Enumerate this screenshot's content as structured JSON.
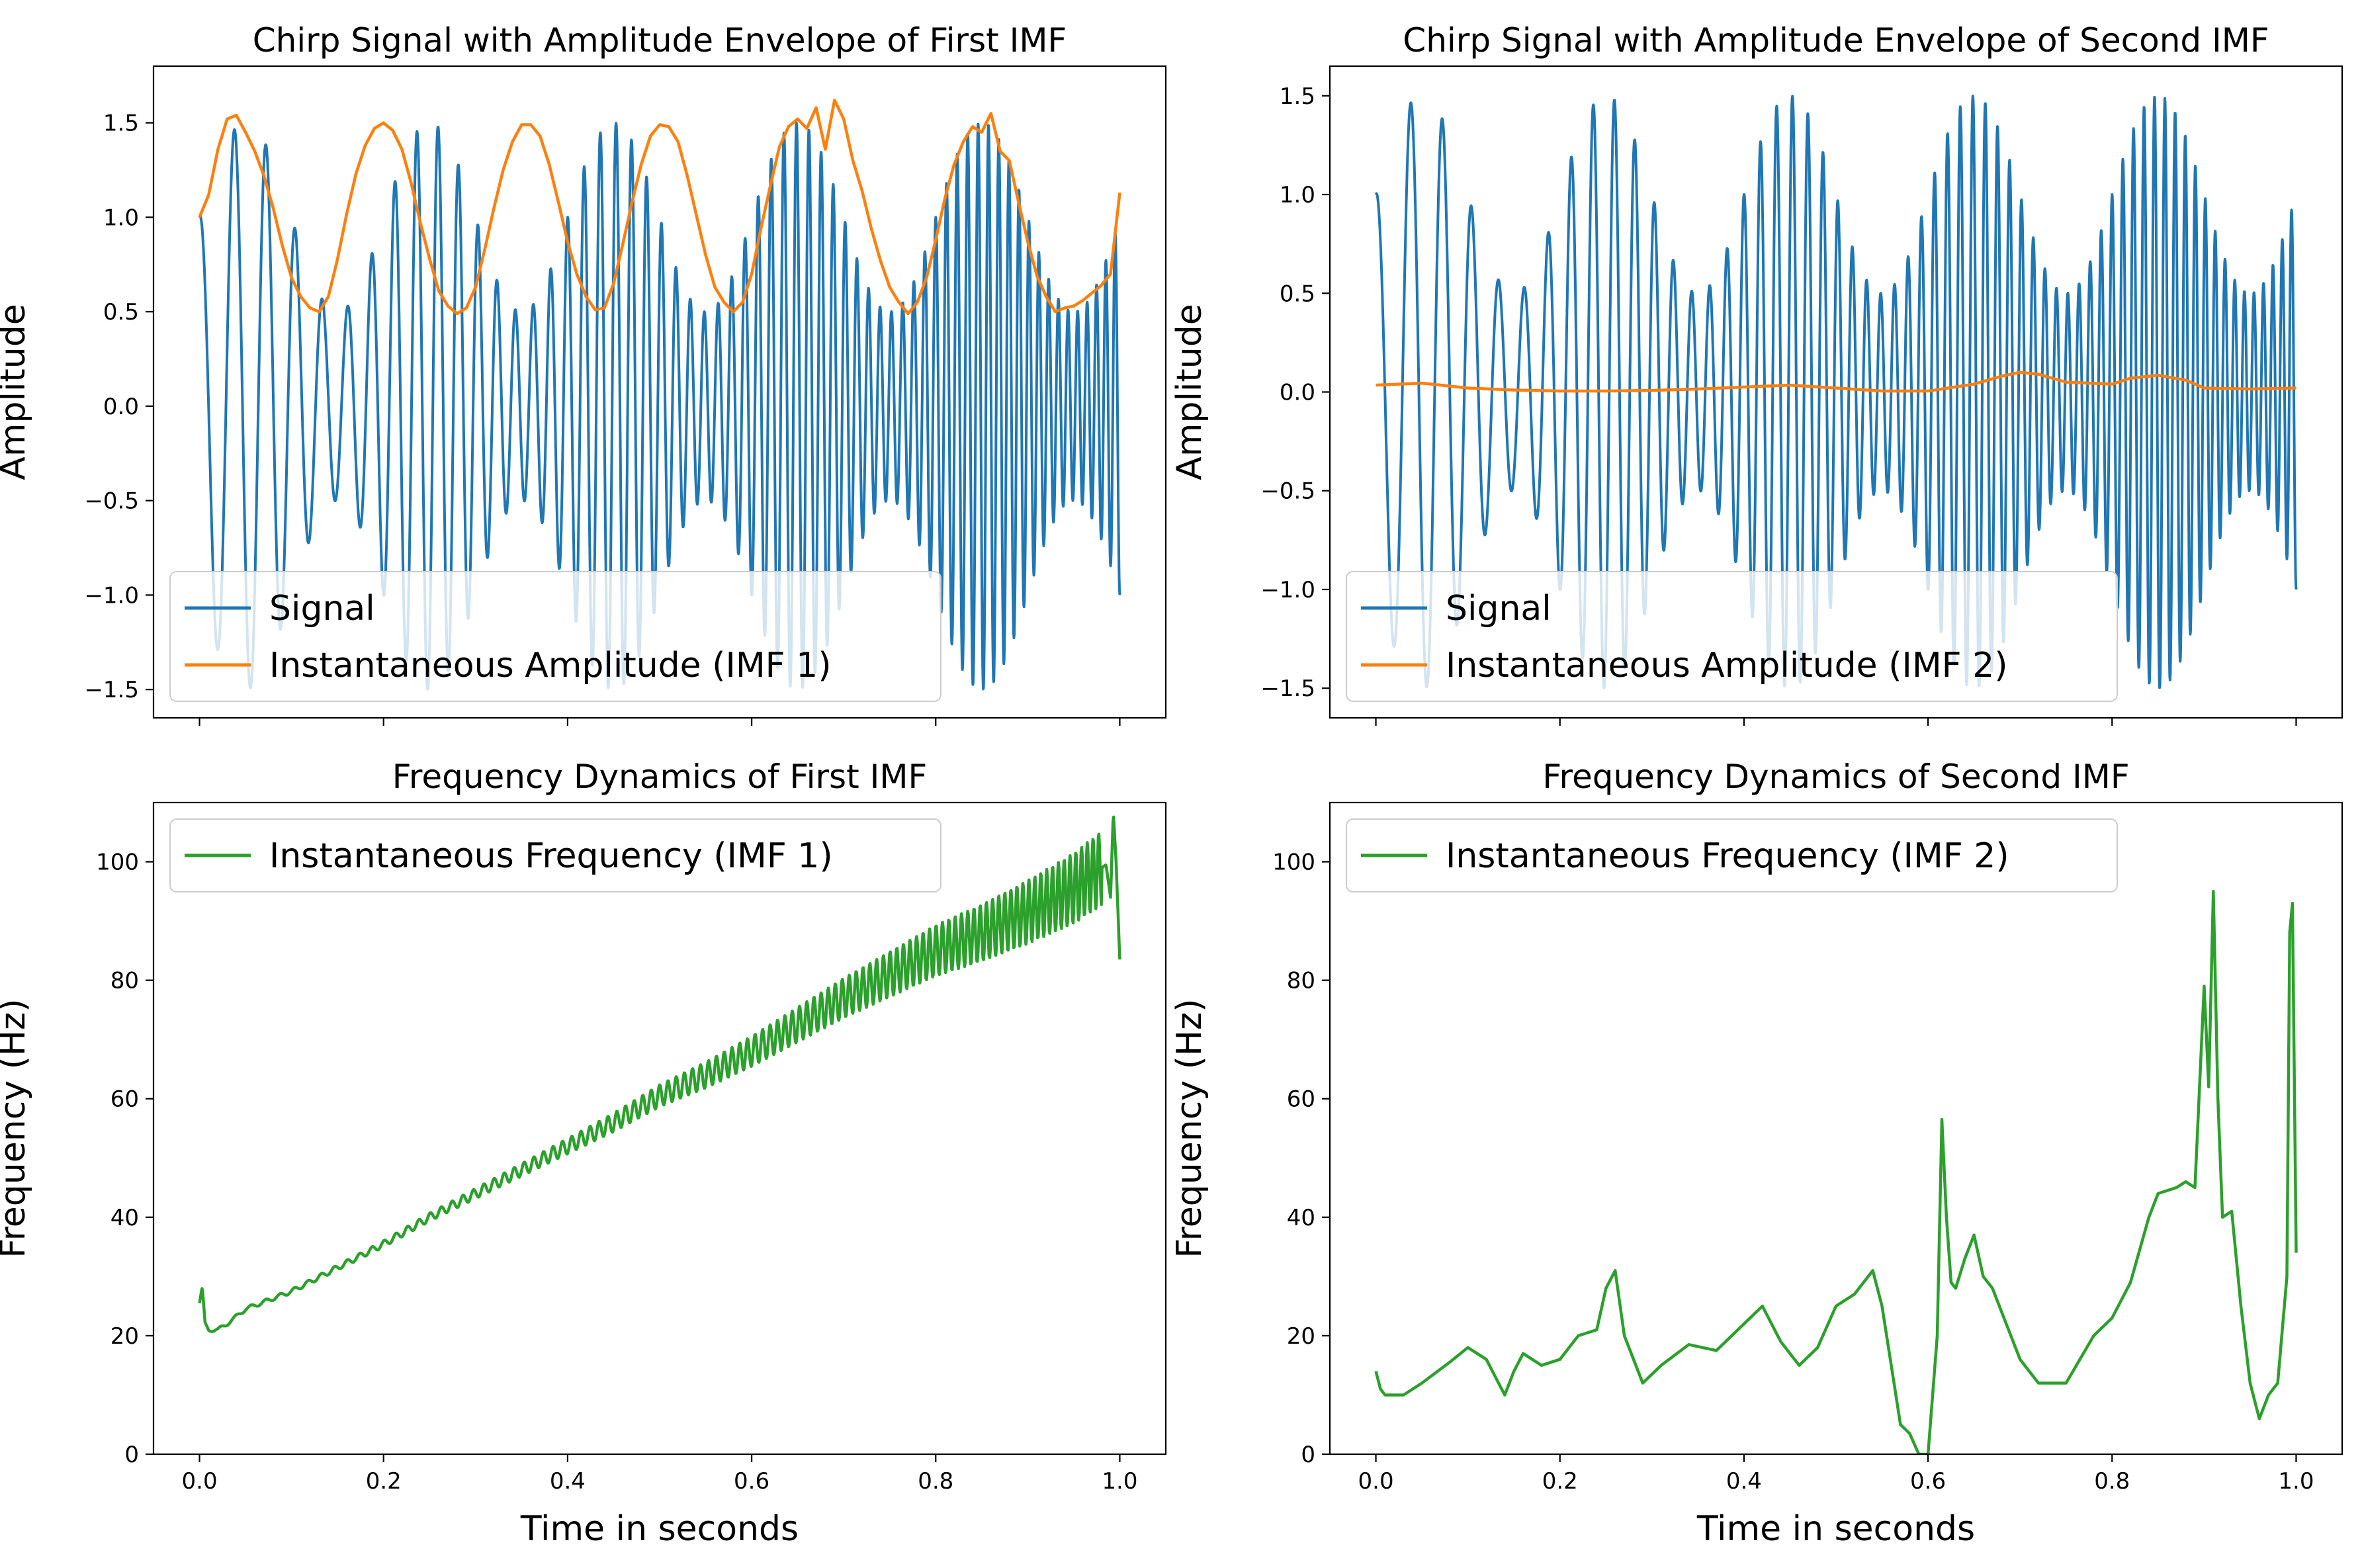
{
  "chart_data": [
    {
      "type": "line",
      "title": "Chirp Signal with Amplitude Envelope of First IMF",
      "xlabel": "",
      "ylabel": "Amplitude",
      "xlim": [
        -0.05,
        1.05
      ],
      "ylim": [
        -1.65,
        1.8
      ],
      "xticks": [
        0.0,
        0.2,
        0.4,
        0.6,
        0.8,
        1.0
      ],
      "xtick_labels_visible": false,
      "yticks": [
        -1.5,
        -1.0,
        -0.5,
        0.0,
        0.5,
        1.0,
        1.5
      ],
      "ytick_labels": [
        "−1.5",
        "−1.0",
        "−0.5",
        "0.0",
        "0.5",
        "1.0",
        "1.5"
      ],
      "legend_position": "lower-left",
      "grid": false,
      "signal": {
        "f0": 25,
        "k": 37.5,
        "mod_freq": 5,
        "mod_depth": 0.5,
        "t_range": [
          0,
          1
        ]
      },
      "series": [
        {
          "name": "Signal",
          "color": "#1f77b4",
          "kind": "signal"
        },
        {
          "name": "Instantaneous Amplitude (IMF 1)",
          "color": "#ff7f0e",
          "kind": "envelope",
          "x": [
            0,
            0.01,
            0.02,
            0.03,
            0.04,
            0.05,
            0.06,
            0.07,
            0.08,
            0.09,
            0.1,
            0.11,
            0.12,
            0.13,
            0.14,
            0.15,
            0.16,
            0.17,
            0.18,
            0.19,
            0.2,
            0.21,
            0.22,
            0.23,
            0.24,
            0.25,
            0.26,
            0.27,
            0.28,
            0.29,
            0.3,
            0.31,
            0.32,
            0.33,
            0.34,
            0.35,
            0.36,
            0.37,
            0.38,
            0.39,
            0.4,
            0.41,
            0.42,
            0.43,
            0.44,
            0.45,
            0.46,
            0.47,
            0.48,
            0.49,
            0.5,
            0.51,
            0.52,
            0.53,
            0.54,
            0.55,
            0.56,
            0.57,
            0.58,
            0.59,
            0.6,
            0.61,
            0.62,
            0.63,
            0.64,
            0.65,
            0.66,
            0.67,
            0.68,
            0.69,
            0.7,
            0.71,
            0.72,
            0.73,
            0.74,
            0.75,
            0.76,
            0.77,
            0.78,
            0.79,
            0.8,
            0.81,
            0.82,
            0.83,
            0.84,
            0.85,
            0.86,
            0.87,
            0.88,
            0.89,
            0.9,
            0.91,
            0.92,
            0.93,
            0.94,
            0.95,
            0.96,
            0.97,
            0.98,
            0.99,
            1.0
          ],
          "y": [
            1.0,
            1.12,
            1.36,
            1.52,
            1.54,
            1.45,
            1.35,
            1.22,
            1.05,
            0.85,
            0.68,
            0.58,
            0.52,
            0.5,
            0.58,
            0.78,
            1.02,
            1.23,
            1.38,
            1.47,
            1.5,
            1.46,
            1.36,
            1.18,
            0.97,
            0.78,
            0.61,
            0.53,
            0.49,
            0.52,
            0.63,
            0.83,
            1.05,
            1.25,
            1.4,
            1.49,
            1.49,
            1.43,
            1.28,
            1.08,
            0.87,
            0.7,
            0.58,
            0.51,
            0.52,
            0.65,
            0.86,
            1.08,
            1.28,
            1.43,
            1.49,
            1.48,
            1.4,
            1.22,
            1.01,
            0.8,
            0.63,
            0.55,
            0.5,
            0.55,
            0.7,
            0.94,
            1.16,
            1.37,
            1.48,
            1.52,
            1.47,
            1.58,
            1.36,
            1.62,
            1.52,
            1.3,
            1.14,
            0.94,
            0.77,
            0.63,
            0.55,
            0.49,
            0.55,
            0.68,
            0.88,
            1.1,
            1.28,
            1.4,
            1.48,
            1.45,
            1.55,
            1.35,
            1.3,
            1.08,
            0.87,
            0.69,
            0.58,
            0.5,
            0.52,
            0.53,
            0.56,
            0.6,
            0.64,
            0.7,
            1.13
          ]
        }
      ]
    },
    {
      "type": "line",
      "title": "Chirp Signal with Amplitude Envelope of Second IMF",
      "xlabel": "",
      "ylabel": "Amplitude",
      "xlim": [
        -0.05,
        1.05
      ],
      "ylim": [
        -1.65,
        1.65
      ],
      "xticks": [
        0.0,
        0.2,
        0.4,
        0.6,
        0.8,
        1.0
      ],
      "xtick_labels_visible": false,
      "yticks": [
        -1.5,
        -1.0,
        -0.5,
        0.0,
        0.5,
        1.0,
        1.5
      ],
      "ytick_labels": [
        "−1.5",
        "−1.0",
        "−0.5",
        "0.0",
        "0.5",
        "1.0",
        "1.5"
      ],
      "legend_position": "lower-left",
      "grid": false,
      "signal": {
        "f0": 25,
        "k": 37.5,
        "mod_freq": 5,
        "mod_depth": 0.5,
        "t_range": [
          0,
          1
        ]
      },
      "series": [
        {
          "name": "Signal",
          "color": "#1f77b4",
          "kind": "signal"
        },
        {
          "name": "Instantaneous Amplitude (IMF 2)",
          "color": "#ff7f0e",
          "kind": "envelope",
          "x": [
            0,
            0.05,
            0.1,
            0.15,
            0.2,
            0.25,
            0.3,
            0.35,
            0.4,
            0.45,
            0.5,
            0.55,
            0.6,
            0.65,
            0.68,
            0.7,
            0.72,
            0.75,
            0.8,
            0.82,
            0.85,
            0.88,
            0.9,
            0.95,
            1.0
          ],
          "y": [
            0.035,
            0.045,
            0.02,
            0.01,
            0.005,
            0.005,
            0.008,
            0.015,
            0.025,
            0.035,
            0.02,
            0.005,
            0.005,
            0.04,
            0.08,
            0.1,
            0.09,
            0.05,
            0.04,
            0.07,
            0.085,
            0.06,
            0.02,
            0.015,
            0.02
          ]
        }
      ]
    },
    {
      "type": "line",
      "title": "Frequency Dynamics of First IMF",
      "xlabel": "Time in seconds",
      "ylabel": "Frequency (Hz)",
      "xlim": [
        -0.05,
        1.05
      ],
      "ylim": [
        0,
        110
      ],
      "xticks": [
        0.0,
        0.2,
        0.4,
        0.6,
        0.8,
        1.0
      ],
      "xtick_labels": [
        "0.0",
        "0.2",
        "0.4",
        "0.6",
        "0.8",
        "1.0"
      ],
      "yticks": [
        0,
        20,
        40,
        60,
        80,
        100
      ],
      "ytick_labels": [
        "0",
        "20",
        "40",
        "60",
        "80",
        "100"
      ],
      "legend_position": "upper-left",
      "grid": false,
      "series": [
        {
          "name": "Instantaneous Frequency (IMF 1)",
          "color": "#2ca02c",
          "x": [
            0.0,
            0.003,
            0.006,
            0.01,
            0.02,
            0.03,
            0.05,
            0.1,
            0.15,
            0.2,
            0.25,
            0.3,
            0.35,
            0.4,
            0.45,
            0.5,
            0.55,
            0.6,
            0.65,
            0.7,
            0.75,
            0.8,
            0.85,
            0.9,
            0.95,
            0.985,
            0.99,
            0.993,
            0.996,
            1.0
          ],
          "y": [
            25.5,
            28,
            22,
            21,
            21,
            22,
            24.5,
            27.5,
            31.5,
            35.5,
            40,
            44,
            48,
            52,
            56,
            60.5,
            64,
            68,
            72.5,
            77,
            81,
            85,
            88,
            91.5,
            95.5,
            99.5,
            94,
            108.5,
            100,
            83.5
          ],
          "wiggle_amp_start": 0.3,
          "wiggle_amp_end": 6.5,
          "wiggle_freq": 55
        }
      ]
    },
    {
      "type": "line",
      "title": "Frequency Dynamics of Second IMF",
      "xlabel": "Time in seconds",
      "ylabel": "Frequency (Hz)",
      "xlim": [
        -0.05,
        1.05
      ],
      "ylim": [
        0,
        110
      ],
      "xticks": [
        0.0,
        0.2,
        0.4,
        0.6,
        0.8,
        1.0
      ],
      "xtick_labels": [
        "0.0",
        "0.2",
        "0.4",
        "0.6",
        "0.8",
        "1.0"
      ],
      "yticks": [
        0,
        20,
        40,
        60,
        80,
        100
      ],
      "ytick_labels": [
        "0",
        "20",
        "40",
        "60",
        "80",
        "100"
      ],
      "legend_position": "upper-left",
      "grid": false,
      "series": [
        {
          "name": "Instantaneous Frequency (IMF 2)",
          "color": "#2ca02c",
          "x": [
            0.0,
            0.005,
            0.01,
            0.03,
            0.05,
            0.08,
            0.1,
            0.12,
            0.13,
            0.14,
            0.15,
            0.16,
            0.18,
            0.2,
            0.22,
            0.24,
            0.25,
            0.26,
            0.27,
            0.29,
            0.31,
            0.34,
            0.37,
            0.4,
            0.42,
            0.44,
            0.46,
            0.48,
            0.5,
            0.52,
            0.54,
            0.55,
            0.56,
            0.57,
            0.58,
            0.59,
            0.6,
            0.61,
            0.615,
            0.62,
            0.625,
            0.63,
            0.64,
            0.65,
            0.66,
            0.67,
            0.69,
            0.7,
            0.72,
            0.75,
            0.78,
            0.8,
            0.82,
            0.84,
            0.85,
            0.87,
            0.88,
            0.89,
            0.9,
            0.905,
            0.91,
            0.915,
            0.92,
            0.93,
            0.94,
            0.95,
            0.96,
            0.97,
            0.98,
            0.99,
            0.993,
            0.996,
            1.0
          ],
          "y": [
            14,
            11,
            10,
            10,
            12,
            15.5,
            18,
            16,
            13,
            10,
            14,
            17,
            15,
            16,
            20,
            21,
            28,
            31,
            20,
            12,
            15,
            18.5,
            17.5,
            22,
            25,
            19,
            15,
            18,
            25,
            27,
            31,
            25,
            15,
            5,
            3.5,
            0,
            0,
            20,
            56.5,
            40,
            29,
            28,
            33,
            37,
            30,
            28,
            20,
            16,
            12,
            12,
            20,
            23,
            29,
            40,
            44,
            45,
            46,
            45,
            79,
            62,
            95,
            60,
            40,
            41,
            25,
            12,
            6,
            10,
            12,
            30,
            88,
            93,
            34
          ]
        }
      ]
    }
  ]
}
